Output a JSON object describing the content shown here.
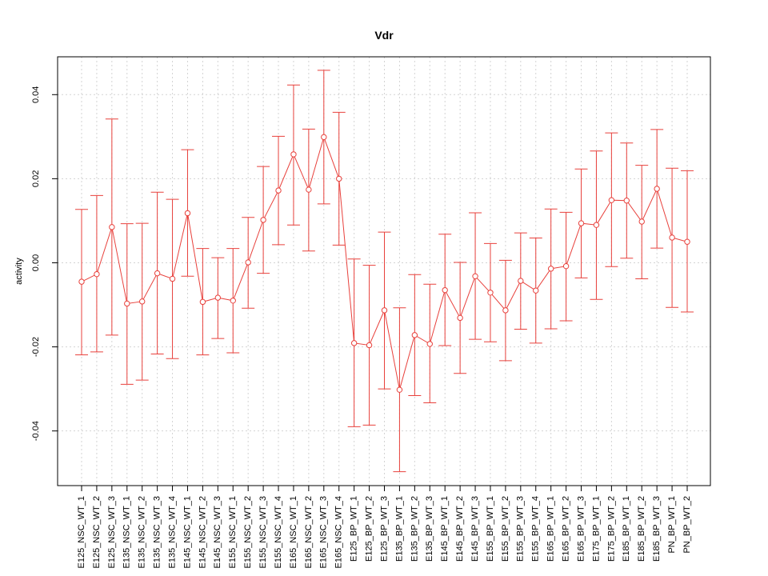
{
  "chart_data": {
    "type": "line",
    "title": "Vdr",
    "xlabel": "",
    "ylabel": "activity",
    "ylim": [
      -0.053,
      0.049
    ],
    "yticks": [
      -0.04,
      -0.02,
      0.0,
      0.02,
      0.04
    ],
    "ytick_labels": [
      "-0.04",
      "-0.02",
      "0.00",
      "0.02",
      "0.04"
    ],
    "grid": true,
    "colors": {
      "series": "#e8413c",
      "grid": "#d3d3d3",
      "axis": "#000000"
    },
    "categories": [
      "E125_NSC_WT_1",
      "E125_NSC_WT_2",
      "E125_NSC_WT_3",
      "E135_NSC_WT_1",
      "E135_NSC_WT_2",
      "E135_NSC_WT_3",
      "E135_NSC_WT_4",
      "E145_NSC_WT_1",
      "E145_NSC_WT_2",
      "E145_NSC_WT_3",
      "E155_NSC_WT_1",
      "E155_NSC_WT_2",
      "E155_NSC_WT_3",
      "E155_NSC_WT_4",
      "E165_NSC_WT_1",
      "E165_NSC_WT_2",
      "E165_NSC_WT_3",
      "E165_NSC_WT_4",
      "E125_BP_WT_1",
      "E125_BP_WT_2",
      "E125_BP_WT_3",
      "E135_BP_WT_1",
      "E135_BP_WT_2",
      "E135_BP_WT_3",
      "E145_BP_WT_1",
      "E145_BP_WT_2",
      "E145_BP_WT_3",
      "E155_BP_WT_1",
      "E155_BP_WT_2",
      "E155_BP_WT_3",
      "E155_BP_WT_4",
      "E165_BP_WT_1",
      "E165_BP_WT_2",
      "E165_BP_WT_3",
      "E175_BP_WT_1",
      "E175_BP_WT_2",
      "E185_BP_WT_1",
      "E185_BP_WT_2",
      "E185_BP_WT_3",
      "PN_BP_WT_1",
      "PN_BP_WT_2"
    ],
    "series": [
      {
        "values": [
          -0.0045,
          -0.0027,
          0.0085,
          -0.0097,
          -0.0092,
          -0.0025,
          -0.0038,
          0.0118,
          -0.0093,
          -0.0083,
          -0.009,
          0.0001,
          0.0102,
          0.0172,
          0.0258,
          0.0174,
          0.0299,
          0.02,
          -0.0191,
          -0.0196,
          -0.0113,
          -0.0302,
          -0.0172,
          -0.0193,
          -0.0065,
          -0.0131,
          -0.0032,
          -0.0071,
          -0.0113,
          -0.0043,
          -0.0066,
          -0.0014,
          -0.0008,
          0.0094,
          0.009,
          0.0149,
          0.0148,
          0.0098,
          0.0176,
          0.006,
          0.005
        ],
        "upper": [
          0.0127,
          0.016,
          0.0342,
          0.0093,
          0.0094,
          0.0168,
          0.0151,
          0.0269,
          0.0034,
          0.0012,
          0.0034,
          0.0108,
          0.0229,
          0.0301,
          0.0423,
          0.0318,
          0.0458,
          0.0358,
          0.0009,
          -0.0006,
          0.0073,
          -0.0107,
          -0.0028,
          -0.0051,
          0.0068,
          0.0001,
          0.0119,
          0.0046,
          0.0006,
          0.0071,
          0.0059,
          0.0128,
          0.012,
          0.0223,
          0.0266,
          0.0309,
          0.0285,
          0.0232,
          0.0317,
          0.0225,
          0.0219
        ],
        "lower": [
          -0.0219,
          -0.0212,
          -0.0172,
          -0.0289,
          -0.0279,
          -0.0217,
          -0.0228,
          -0.0032,
          -0.0219,
          -0.018,
          -0.0214,
          -0.0108,
          -0.0025,
          0.0043,
          0.009,
          0.0028,
          0.014,
          0.0042,
          -0.039,
          -0.0386,
          -0.03,
          -0.0497,
          -0.0316,
          -0.0333,
          -0.0197,
          -0.0263,
          -0.0182,
          -0.0188,
          -0.0233,
          -0.0158,
          -0.0191,
          -0.0157,
          -0.0138,
          -0.0036,
          -0.0087,
          -0.0009,
          0.0011,
          -0.0038,
          0.0035,
          -0.0106,
          -0.0117
        ]
      }
    ]
  }
}
